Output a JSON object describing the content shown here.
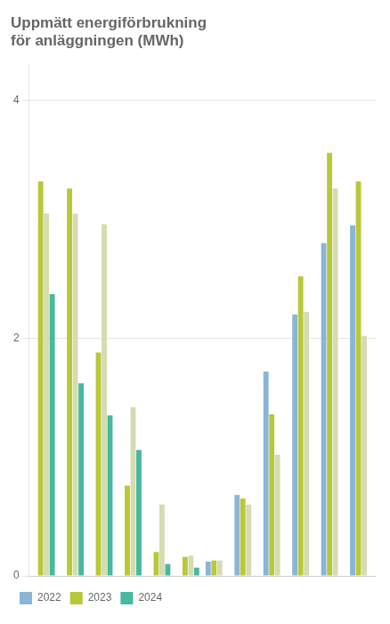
{
  "chart_data": {
    "type": "bar",
    "title": "Uppmätt energiförbrukning\nför anläggningen (MWh)",
    "categories": [
      null,
      null,
      null,
      null,
      null,
      null,
      null,
      null,
      null,
      null,
      null,
      null
    ],
    "series": [
      {
        "name": "2022",
        "color": "#8ab5d5",
        "values": [
          0.0,
          0.0,
          0.0,
          0.0,
          0.0,
          0.0,
          0.12,
          0.68,
          1.72,
          2.2,
          2.8,
          2.95
        ]
      },
      {
        "name": "2023",
        "color": "#b8c838",
        "values": [
          3.32,
          3.26,
          1.88,
          0.76,
          0.2,
          0.16,
          0.13,
          0.65,
          1.36,
          2.52,
          3.56,
          3.32
        ]
      },
      {
        "color": "#d4dcb0",
        "values": [
          3.05,
          3.05,
          2.96,
          1.42,
          0.6,
          0.17,
          0.13,
          0.6,
          1.02,
          2.22,
          3.26,
          2.02
        ]
      },
      {
        "name": "2024",
        "color": "#48b8a0",
        "values": [
          2.37,
          1.62,
          1.35,
          1.06,
          0.1,
          0.07,
          0.0,
          0.0,
          0.0,
          0.0,
          0.0,
          0.0
        ]
      }
    ],
    "ylim": [
      0,
      4.3
    ],
    "yticks": [
      0,
      2,
      4
    ],
    "grid": true,
    "legend": "bottom",
    "tick_labels": "y"
  }
}
